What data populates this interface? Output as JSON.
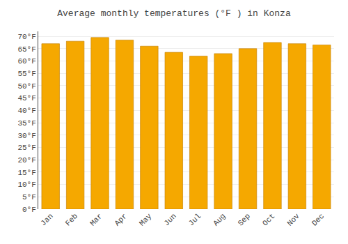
{
  "chart_data": {
    "type": "bar",
    "title": "Average monthly temperatures (°F ) in Konza",
    "categories": [
      "Jan",
      "Feb",
      "Mar",
      "Apr",
      "May",
      "Jun",
      "Jul",
      "Aug",
      "Sep",
      "Oct",
      "Nov",
      "Dec"
    ],
    "values": [
      67,
      68,
      69.5,
      68.5,
      66,
      63.5,
      62,
      63,
      65,
      67.5,
      67,
      66.5
    ],
    "color": "#F5A800",
    "ylim": [
      0,
      72
    ],
    "yticks": [
      {
        "value": 0,
        "label": "0°F"
      },
      {
        "value": 5,
        "label": "5°F"
      },
      {
        "value": 10,
        "label": "10°F"
      },
      {
        "value": 15,
        "label": "15°F"
      },
      {
        "value": 20,
        "label": "20°F"
      },
      {
        "value": 25,
        "label": "25°F"
      },
      {
        "value": 30,
        "label": "30°F"
      },
      {
        "value": 35,
        "label": "35°F"
      },
      {
        "value": 40,
        "label": "40°F"
      },
      {
        "value": 45,
        "label": "45°F"
      },
      {
        "value": 50,
        "label": "50°F"
      },
      {
        "value": 55,
        "label": "55°F"
      },
      {
        "value": 60,
        "label": "60°F"
      },
      {
        "value": 65,
        "label": "65°F"
      },
      {
        "value": 70,
        "label": "70°F"
      }
    ],
    "grid": true
  }
}
